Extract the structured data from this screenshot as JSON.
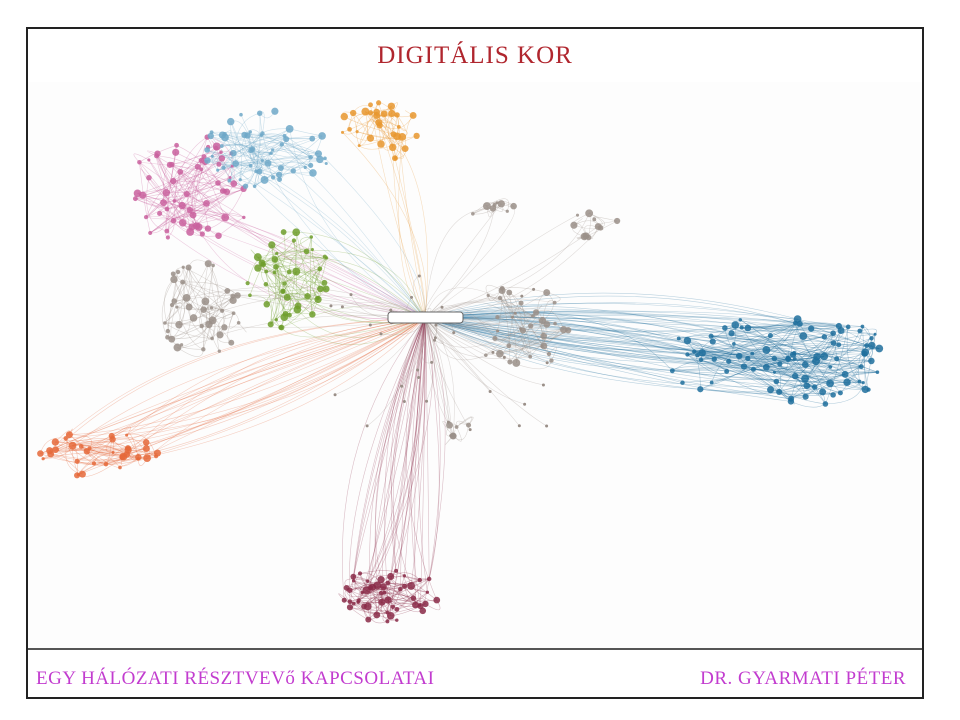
{
  "slide": {
    "title": "DIGITÁLIS KOR",
    "footer_left": "EGY HÁLÓZATI RÉSZTVEVő KAPCSOLATAI",
    "footer_right": "DR. GYARMATI PÉTER"
  },
  "diagram": {
    "type": "network graph",
    "hub_color": "#ffffff",
    "cluster_colors": {
      "pink": "#c9609e",
      "light_blue": "#6fa8c8",
      "orange": "#e8962e",
      "green": "#6e9e2c",
      "gray": "#9a8f88",
      "blue": "#1f6e9c",
      "orange_red": "#e5683a",
      "maroon": "#8a2a48"
    }
  }
}
